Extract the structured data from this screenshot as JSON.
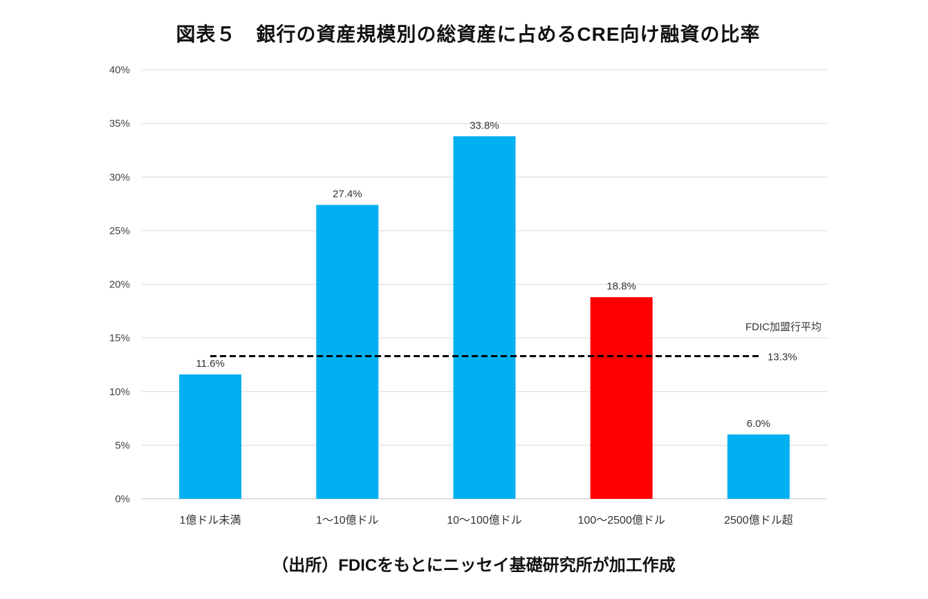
{
  "title": "図表５　銀行の資産規模別の総資産に占めるCRE向け融資の比率",
  "source": "（出所）FDICをもとにニッセイ基礎研究所が加工作成",
  "chart_data": {
    "type": "bar",
    "categories": [
      "1億ドル未満",
      "1～10億ドル",
      "10～100億ドル",
      "100～2500億ドル",
      "2500億ドル超"
    ],
    "values": [
      11.6,
      27.4,
      33.8,
      18.8,
      6.0
    ],
    "data_labels": [
      "11.6%",
      "27.4%",
      "33.8%",
      "18.8%",
      "6.0%"
    ],
    "bar_colors": [
      "#00B0F0",
      "#00B0F0",
      "#00B0F0",
      "#FF0000",
      "#00B0F0"
    ],
    "ylim": [
      0,
      40
    ],
    "yticks": [
      0,
      5,
      10,
      15,
      20,
      25,
      30,
      35,
      40
    ],
    "ytick_labels": [
      "0%",
      "5%",
      "10%",
      "15%",
      "20%",
      "25%",
      "30%",
      "35%",
      "40%"
    ],
    "grid": true,
    "reference_line": {
      "name": "FDIC加盟行平均",
      "value": 13.3,
      "label": "13.3%",
      "style": "dashed",
      "color": "#000000"
    }
  }
}
